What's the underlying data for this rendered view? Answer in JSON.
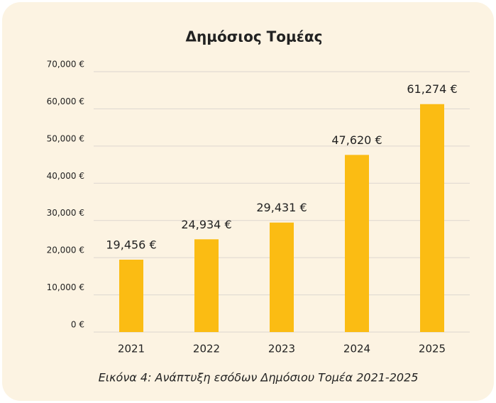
{
  "chart_data": {
    "type": "bar",
    "title": "Δημόσιος Τομέας",
    "caption": "Εικόνα 4: Ανάπτυξη εσόδων Δημόσιου Τομέα 2021-2025",
    "categories": [
      "2021",
      "2022",
      "2023",
      "2024",
      "2025"
    ],
    "values": [
      19456,
      24934,
      29431,
      47620,
      61274
    ],
    "value_labels": [
      "19,456 €",
      "24,934 €",
      "29,431 €",
      "47,620 €",
      "61,274 €"
    ],
    "color": "#fbbc13",
    "ylim": [
      0,
      70000
    ],
    "yticks": [
      {
        "value": 0,
        "label": "0 €"
      },
      {
        "value": 10000,
        "label": "10,000 €"
      },
      {
        "value": 20000,
        "label": "20,000 €"
      },
      {
        "value": 30000,
        "label": "30,000 €"
      },
      {
        "value": 40000,
        "label": "40,000 €"
      },
      {
        "value": 50000,
        "label": "50,000 €"
      },
      {
        "value": 60000,
        "label": "60,000 €"
      },
      {
        "value": 70000,
        "label": "70,000 €"
      }
    ],
    "grid": true
  }
}
